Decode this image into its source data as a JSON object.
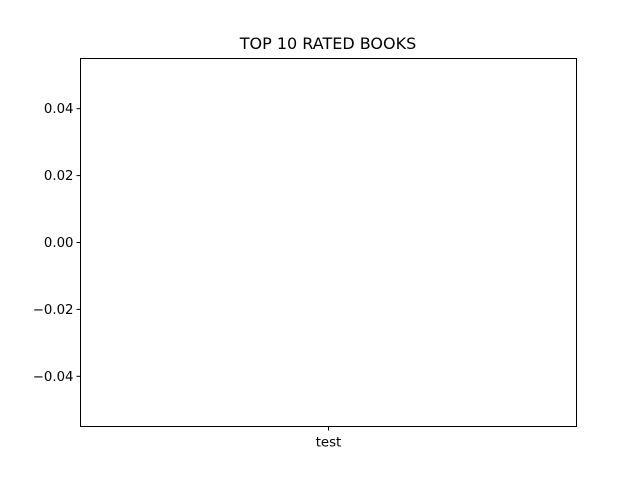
{
  "chart_data": {
    "type": "bar",
    "title": "TOP 10 RATED BOOKS",
    "xlabel": "",
    "ylabel": "",
    "categories": [
      "test"
    ],
    "values": [
      0
    ],
    "ylim": [
      -0.055,
      0.055
    ],
    "y_ticks": [
      0.04,
      0.02,
      0.0,
      -0.02,
      -0.04
    ],
    "y_tick_labels": [
      "0.04",
      "0.02",
      "0.00",
      "−0.02",
      "−0.04"
    ],
    "grid": false,
    "legend": "none",
    "colors": {
      "axis": "#000000",
      "background": "#ffffff",
      "bar": "#1f77b4"
    }
  }
}
